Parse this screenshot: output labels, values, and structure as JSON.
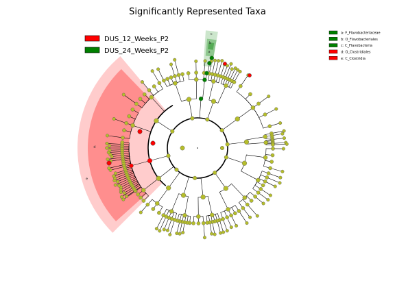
{
  "chart_data": {
    "type": "cladogram",
    "title": "Significantly Represented Taxa",
    "legend": [
      {
        "name": "DUS_12_Weeks_P2",
        "color": "#ff0000"
      },
      {
        "name": "DUS_24_Weeks_P2",
        "color": "#008000"
      }
    ],
    "taxa": [
      {
        "letter": "a",
        "name": "F_Flavobacteriaceae",
        "group": "DUS_24_Weeks_P2",
        "color": "#008000"
      },
      {
        "letter": "b",
        "name": "O_Flavobacteriales",
        "group": "DUS_24_Weeks_P2",
        "color": "#008000"
      },
      {
        "letter": "c",
        "name": "C_Flavobacteria",
        "group": "DUS_24_Weeks_P2",
        "color": "#008000"
      },
      {
        "letter": "d",
        "name": "O_Clostridiales",
        "group": "DUS_12_Weeks_P2",
        "color": "#ff0000"
      },
      {
        "letter": "e",
        "name": "C_Clostridia",
        "group": "DUS_12_Weeks_P2",
        "color": "#ff0000"
      }
    ],
    "colors": {
      "node_default": "#b5bd2b",
      "highlight_red": "#ff0000",
      "highlight_green": "#008000",
      "edge": "#000000"
    }
  }
}
